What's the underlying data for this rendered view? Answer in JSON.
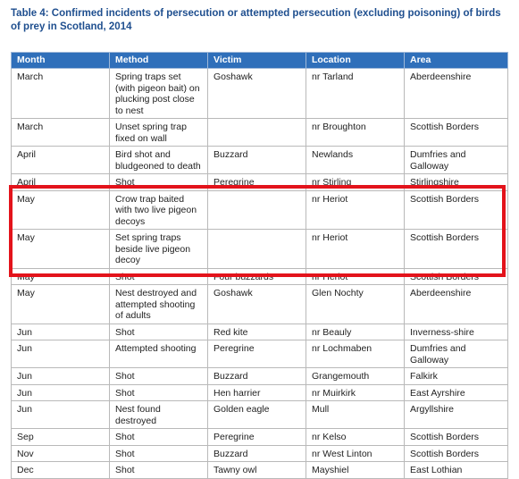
{
  "title": "Table 4: Confirmed incidents of persecution or attempted persecution (excluding poisoning) of birds of prey in Scotland, 2014",
  "headers": [
    "Month",
    "Method",
    "Victim",
    "Location",
    "Area"
  ],
  "rows": [
    [
      "March",
      "Spring traps set (with pigeon bait) on plucking post close to nest",
      "Goshawk",
      "nr Tarland",
      "Aberdeenshire"
    ],
    [
      "March",
      "Unset spring trap fixed on wall",
      "",
      "nr Broughton",
      "Scottish Borders"
    ],
    [
      "April",
      "Bird shot and bludgeoned to death",
      "Buzzard",
      "Newlands",
      "Dumfries and Galloway"
    ],
    [
      "April",
      "Shot",
      "Peregrine",
      "nr Stirling",
      "Stirlingshire"
    ],
    [
      "May",
      "Crow trap baited with two live pigeon decoys",
      "",
      "nr Heriot",
      "Scottish Borders"
    ],
    [
      "May",
      "Set spring traps beside live pigeon decoy",
      "",
      "nr Heriot",
      "Scottish Borders"
    ],
    [
      "May",
      "Shot",
      "Four buzzards",
      "nr Heriot",
      "Scottish Borders"
    ],
    [
      "May",
      "Nest destroyed and attempted shooting of adults",
      "Goshawk",
      "Glen Nochty",
      "Aberdeenshire"
    ],
    [
      "Jun",
      "Shot",
      "Red kite",
      "nr Beauly",
      "Inverness-shire"
    ],
    [
      "Jun",
      "Attempted shooting",
      "Peregrine",
      "nr Lochmaben",
      "Dumfries and Galloway"
    ],
    [
      "Jun",
      "Shot",
      "Buzzard",
      "Grangemouth",
      "Falkirk"
    ],
    [
      "Jun",
      "Shot",
      "Hen harrier",
      "nr Muirkirk",
      "East Ayrshire"
    ],
    [
      "Jun",
      "Nest found destroyed",
      "Golden eagle",
      "Mull",
      "Argyllshire"
    ],
    [
      "Sep",
      "Shot",
      "Peregrine",
      "nr Kelso",
      "Scottish Borders"
    ],
    [
      "Nov",
      "Shot",
      "Buzzard",
      "nr West Linton",
      "Scottish Borders"
    ],
    [
      "Dec",
      "Shot",
      "Tawny owl",
      "Mayshiel",
      "East Lothian"
    ]
  ],
  "colors": {
    "header_bg": "#2f6fba",
    "title": "#1f4f8f",
    "highlight": "#e3131b"
  }
}
